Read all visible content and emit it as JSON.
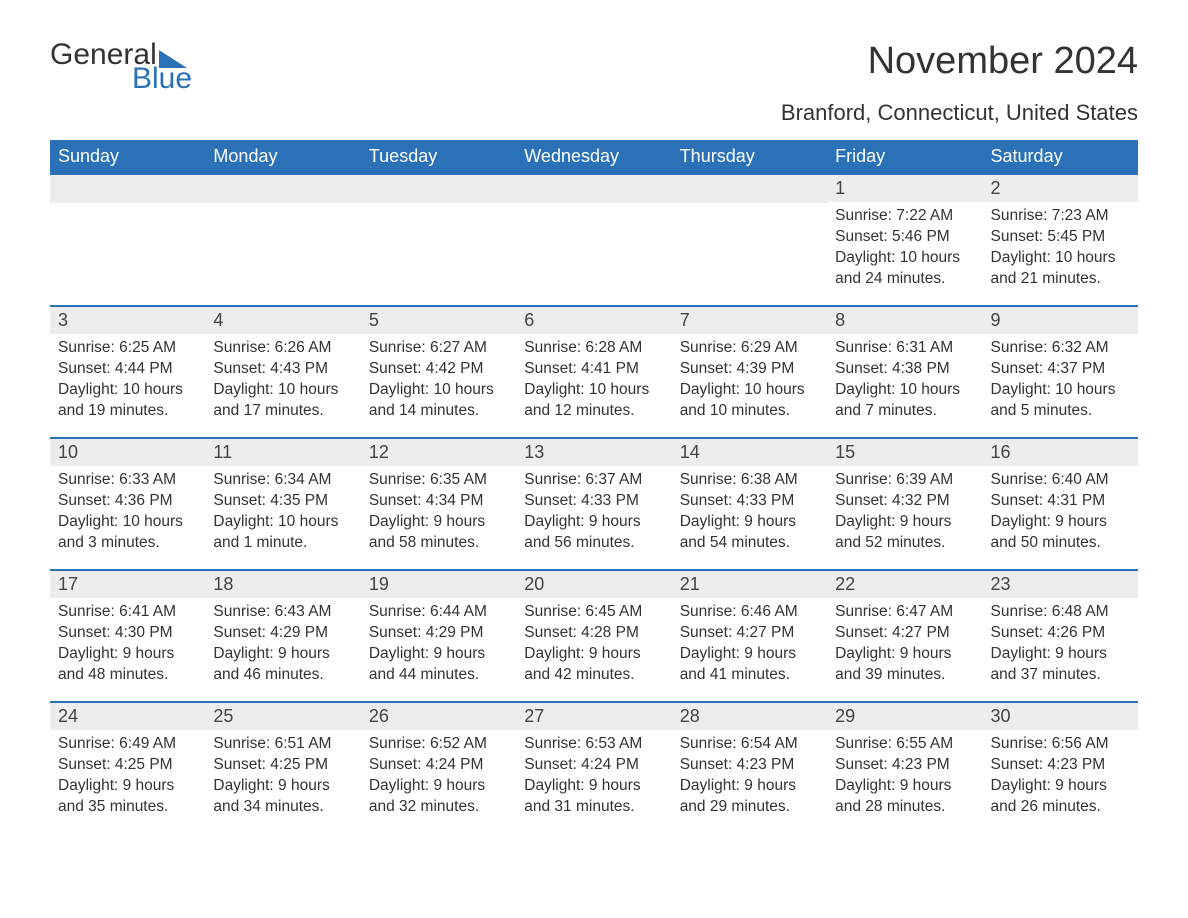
{
  "logo": {
    "text1": "General",
    "text2": "Blue",
    "sail_color": "#2a71b8"
  },
  "title": "November 2024",
  "location": "Branford, Connecticut, United States",
  "colors": {
    "header_bg": "#2a71b8",
    "header_text": "#ffffff",
    "daynum_bg": "#ededed",
    "text": "#333333",
    "rule": "#2a71b8",
    "page_bg": "#ffffff"
  },
  "typography": {
    "title_fontsize": 38,
    "location_fontsize": 22,
    "dow_fontsize": 18,
    "daynum_fontsize": 18,
    "body_fontsize": 15.5
  },
  "dow": [
    "Sunday",
    "Monday",
    "Tuesday",
    "Wednesday",
    "Thursday",
    "Friday",
    "Saturday"
  ],
  "weeks": [
    [
      null,
      null,
      null,
      null,
      null,
      {
        "n": "1",
        "sunrise": "Sunrise: 7:22 AM",
        "sunset": "Sunset: 5:46 PM",
        "dl1": "Daylight: 10 hours",
        "dl2": "and 24 minutes."
      },
      {
        "n": "2",
        "sunrise": "Sunrise: 7:23 AM",
        "sunset": "Sunset: 5:45 PM",
        "dl1": "Daylight: 10 hours",
        "dl2": "and 21 minutes."
      }
    ],
    [
      {
        "n": "3",
        "sunrise": "Sunrise: 6:25 AM",
        "sunset": "Sunset: 4:44 PM",
        "dl1": "Daylight: 10 hours",
        "dl2": "and 19 minutes."
      },
      {
        "n": "4",
        "sunrise": "Sunrise: 6:26 AM",
        "sunset": "Sunset: 4:43 PM",
        "dl1": "Daylight: 10 hours",
        "dl2": "and 17 minutes."
      },
      {
        "n": "5",
        "sunrise": "Sunrise: 6:27 AM",
        "sunset": "Sunset: 4:42 PM",
        "dl1": "Daylight: 10 hours",
        "dl2": "and 14 minutes."
      },
      {
        "n": "6",
        "sunrise": "Sunrise: 6:28 AM",
        "sunset": "Sunset: 4:41 PM",
        "dl1": "Daylight: 10 hours",
        "dl2": "and 12 minutes."
      },
      {
        "n": "7",
        "sunrise": "Sunrise: 6:29 AM",
        "sunset": "Sunset: 4:39 PM",
        "dl1": "Daylight: 10 hours",
        "dl2": "and 10 minutes."
      },
      {
        "n": "8",
        "sunrise": "Sunrise: 6:31 AM",
        "sunset": "Sunset: 4:38 PM",
        "dl1": "Daylight: 10 hours",
        "dl2": "and 7 minutes."
      },
      {
        "n": "9",
        "sunrise": "Sunrise: 6:32 AM",
        "sunset": "Sunset: 4:37 PM",
        "dl1": "Daylight: 10 hours",
        "dl2": "and 5 minutes."
      }
    ],
    [
      {
        "n": "10",
        "sunrise": "Sunrise: 6:33 AM",
        "sunset": "Sunset: 4:36 PM",
        "dl1": "Daylight: 10 hours",
        "dl2": "and 3 minutes."
      },
      {
        "n": "11",
        "sunrise": "Sunrise: 6:34 AM",
        "sunset": "Sunset: 4:35 PM",
        "dl1": "Daylight: 10 hours",
        "dl2": "and 1 minute."
      },
      {
        "n": "12",
        "sunrise": "Sunrise: 6:35 AM",
        "sunset": "Sunset: 4:34 PM",
        "dl1": "Daylight: 9 hours",
        "dl2": "and 58 minutes."
      },
      {
        "n": "13",
        "sunrise": "Sunrise: 6:37 AM",
        "sunset": "Sunset: 4:33 PM",
        "dl1": "Daylight: 9 hours",
        "dl2": "and 56 minutes."
      },
      {
        "n": "14",
        "sunrise": "Sunrise: 6:38 AM",
        "sunset": "Sunset: 4:33 PM",
        "dl1": "Daylight: 9 hours",
        "dl2": "and 54 minutes."
      },
      {
        "n": "15",
        "sunrise": "Sunrise: 6:39 AM",
        "sunset": "Sunset: 4:32 PM",
        "dl1": "Daylight: 9 hours",
        "dl2": "and 52 minutes."
      },
      {
        "n": "16",
        "sunrise": "Sunrise: 6:40 AM",
        "sunset": "Sunset: 4:31 PM",
        "dl1": "Daylight: 9 hours",
        "dl2": "and 50 minutes."
      }
    ],
    [
      {
        "n": "17",
        "sunrise": "Sunrise: 6:41 AM",
        "sunset": "Sunset: 4:30 PM",
        "dl1": "Daylight: 9 hours",
        "dl2": "and 48 minutes."
      },
      {
        "n": "18",
        "sunrise": "Sunrise: 6:43 AM",
        "sunset": "Sunset: 4:29 PM",
        "dl1": "Daylight: 9 hours",
        "dl2": "and 46 minutes."
      },
      {
        "n": "19",
        "sunrise": "Sunrise: 6:44 AM",
        "sunset": "Sunset: 4:29 PM",
        "dl1": "Daylight: 9 hours",
        "dl2": "and 44 minutes."
      },
      {
        "n": "20",
        "sunrise": "Sunrise: 6:45 AM",
        "sunset": "Sunset: 4:28 PM",
        "dl1": "Daylight: 9 hours",
        "dl2": "and 42 minutes."
      },
      {
        "n": "21",
        "sunrise": "Sunrise: 6:46 AM",
        "sunset": "Sunset: 4:27 PM",
        "dl1": "Daylight: 9 hours",
        "dl2": "and 41 minutes."
      },
      {
        "n": "22",
        "sunrise": "Sunrise: 6:47 AM",
        "sunset": "Sunset: 4:27 PM",
        "dl1": "Daylight: 9 hours",
        "dl2": "and 39 minutes."
      },
      {
        "n": "23",
        "sunrise": "Sunrise: 6:48 AM",
        "sunset": "Sunset: 4:26 PM",
        "dl1": "Daylight: 9 hours",
        "dl2": "and 37 minutes."
      }
    ],
    [
      {
        "n": "24",
        "sunrise": "Sunrise: 6:49 AM",
        "sunset": "Sunset: 4:25 PM",
        "dl1": "Daylight: 9 hours",
        "dl2": "and 35 minutes."
      },
      {
        "n": "25",
        "sunrise": "Sunrise: 6:51 AM",
        "sunset": "Sunset: 4:25 PM",
        "dl1": "Daylight: 9 hours",
        "dl2": "and 34 minutes."
      },
      {
        "n": "26",
        "sunrise": "Sunrise: 6:52 AM",
        "sunset": "Sunset: 4:24 PM",
        "dl1": "Daylight: 9 hours",
        "dl2": "and 32 minutes."
      },
      {
        "n": "27",
        "sunrise": "Sunrise: 6:53 AM",
        "sunset": "Sunset: 4:24 PM",
        "dl1": "Daylight: 9 hours",
        "dl2": "and 31 minutes."
      },
      {
        "n": "28",
        "sunrise": "Sunrise: 6:54 AM",
        "sunset": "Sunset: 4:23 PM",
        "dl1": "Daylight: 9 hours",
        "dl2": "and 29 minutes."
      },
      {
        "n": "29",
        "sunrise": "Sunrise: 6:55 AM",
        "sunset": "Sunset: 4:23 PM",
        "dl1": "Daylight: 9 hours",
        "dl2": "and 28 minutes."
      },
      {
        "n": "30",
        "sunrise": "Sunrise: 6:56 AM",
        "sunset": "Sunset: 4:23 PM",
        "dl1": "Daylight: 9 hours",
        "dl2": "and 26 minutes."
      }
    ]
  ]
}
